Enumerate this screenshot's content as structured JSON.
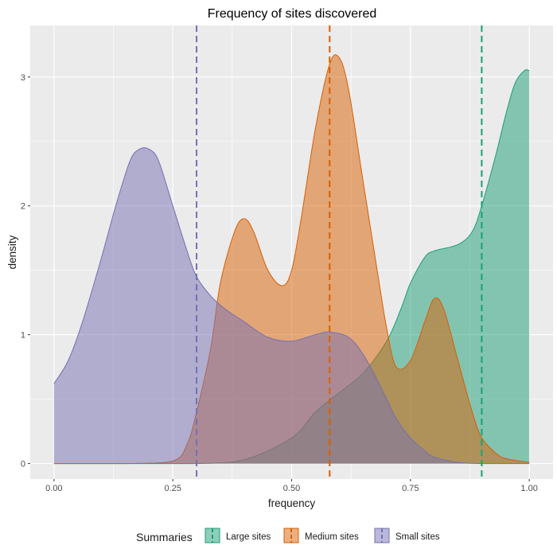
{
  "chart_data": {
    "type": "area",
    "title": "Frequency of sites discovered",
    "xlabel": "frequency",
    "ylabel": "density",
    "xlim": [
      -0.05,
      1.05
    ],
    "ylim": [
      -0.12,
      3.4
    ],
    "x_ticks": [
      0.0,
      0.25,
      0.5,
      0.75,
      1.0
    ],
    "x_tick_labels": [
      "0.00",
      "0.25",
      "0.50",
      "0.75",
      "1.00"
    ],
    "y_ticks": [
      0,
      1,
      2,
      3
    ],
    "y_tick_labels": [
      "0",
      "1",
      "2",
      "3"
    ],
    "grid": true,
    "legend": {
      "title": "Summaries",
      "position": "bottom"
    },
    "series": [
      {
        "name": "Large sites",
        "color": "#1b9e77",
        "mean": 0.9,
        "x": [
          0.0,
          0.16,
          0.3,
          0.4,
          0.5,
          0.55,
          0.6,
          0.65,
          0.7,
          0.73,
          0.75,
          0.78,
          0.8,
          0.85,
          0.88,
          0.9,
          0.93,
          0.95,
          0.97,
          0.99,
          1.0
        ],
        "y": [
          0.0,
          0.0,
          0.0,
          0.03,
          0.2,
          0.4,
          0.55,
          0.7,
          0.95,
          1.2,
          1.4,
          1.6,
          1.65,
          1.7,
          1.8,
          2.0,
          2.4,
          2.7,
          2.95,
          3.05,
          3.05
        ]
      },
      {
        "name": "Medium sites",
        "color": "#d95f02",
        "mean": 0.58,
        "x": [
          0.0,
          0.15,
          0.25,
          0.28,
          0.3,
          0.33,
          0.35,
          0.38,
          0.4,
          0.42,
          0.45,
          0.48,
          0.5,
          0.52,
          0.55,
          0.58,
          0.6,
          0.62,
          0.65,
          0.68,
          0.7,
          0.72,
          0.75,
          0.78,
          0.8,
          0.82,
          0.85,
          0.88,
          0.9,
          0.93,
          0.95,
          0.98,
          1.0
        ],
        "y": [
          0.0,
          0.0,
          0.02,
          0.15,
          0.4,
          0.9,
          1.4,
          1.8,
          1.9,
          1.8,
          1.5,
          1.38,
          1.5,
          1.9,
          2.6,
          3.1,
          3.15,
          2.9,
          2.2,
          1.5,
          1.05,
          0.75,
          0.8,
          1.1,
          1.28,
          1.2,
          0.8,
          0.4,
          0.2,
          0.08,
          0.04,
          0.02,
          0.01
        ]
      },
      {
        "name": "Small sites",
        "color": "#7570b3",
        "mean": 0.3,
        "x": [
          0.0,
          0.03,
          0.06,
          0.1,
          0.13,
          0.16,
          0.18,
          0.2,
          0.22,
          0.25,
          0.28,
          0.3,
          0.33,
          0.36,
          0.4,
          0.45,
          0.5,
          0.55,
          0.58,
          0.62,
          0.65,
          0.68,
          0.7,
          0.72,
          0.75,
          0.78,
          0.8,
          0.85,
          0.9,
          0.95,
          1.0
        ],
        "y": [
          0.62,
          0.8,
          1.1,
          1.6,
          2.0,
          2.35,
          2.44,
          2.44,
          2.35,
          2.0,
          1.65,
          1.45,
          1.3,
          1.2,
          1.1,
          0.98,
          0.95,
          1.0,
          1.02,
          0.98,
          0.85,
          0.65,
          0.5,
          0.35,
          0.2,
          0.1,
          0.05,
          0.01,
          0.0,
          0.0,
          0.0
        ]
      }
    ],
    "draw_order": [
      "Large sites",
      "Medium sites",
      "Small sites"
    ]
  }
}
